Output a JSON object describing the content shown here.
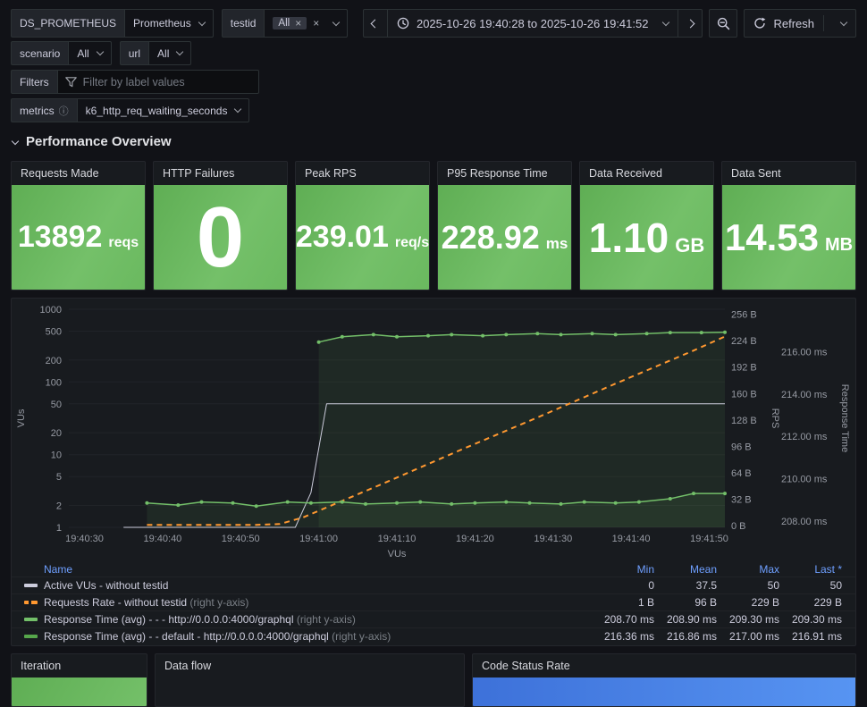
{
  "variables": {
    "ds": {
      "label": "DS_PROMETHEUS",
      "value": "Prometheus"
    },
    "testid": {
      "label": "testid",
      "value": "All"
    },
    "scenario": {
      "label": "scenario",
      "value": "All"
    },
    "url": {
      "label": "url",
      "value": "All"
    },
    "filters": {
      "label": "Filters",
      "placeholder": "Filter by label values"
    },
    "metrics": {
      "label": "metrics",
      "value": "k6_http_req_waiting_seconds"
    }
  },
  "icon_glyphs": {
    "close": "×",
    "info": "ⓘ"
  },
  "timepicker": {
    "range_text": "2025-10-26 19:40:28 to 2025-10-26 19:41:52",
    "refresh_label": "Refresh"
  },
  "section": {
    "title": "Performance Overview"
  },
  "stats": [
    {
      "title": "Requests Made",
      "value": "13892",
      "unit": "reqs"
    },
    {
      "title": "HTTP Failures",
      "value": "0",
      "unit": ""
    },
    {
      "title": "Peak RPS",
      "value": "239.01",
      "unit": "req/s"
    },
    {
      "title": "P95 Response Time",
      "value": "228.92",
      "unit": "ms"
    },
    {
      "title": "Data Received",
      "value": "1.10",
      "unit": "GB"
    },
    {
      "title": "Data Sent",
      "value": "14.53",
      "unit": "MB"
    }
  ],
  "colors": {
    "background": "#111217",
    "panel": "#181b1f",
    "stat_green_from": "#5fae54",
    "stat_green_to": "#74c069",
    "blue_from": "#3d71d9",
    "blue_to": "#5794f2",
    "orange": "#ff9830",
    "green_series": "#73bf69",
    "gray_series": "#ccccdc",
    "legend_header_blue": "#6e9fff"
  },
  "chart_data": {
    "type": "line",
    "x_tick_labels": [
      "19:40:30",
      "19:40:40",
      "19:40:50",
      "19:41:00",
      "19:41:10",
      "19:41:20",
      "19:41:30",
      "19:41:40",
      "19:41:50"
    ],
    "x_tick_seconds": [
      2,
      12,
      22,
      32,
      42,
      52,
      62,
      72,
      82
    ],
    "x_range_seconds": [
      0,
      84
    ],
    "xlabel": "VUs",
    "axes": {
      "vus": {
        "label": "VUs",
        "side": "left",
        "scale": "log",
        "min": 1,
        "max": 1000,
        "tick_values": [
          1,
          2,
          5,
          10,
          20,
          50,
          100,
          200,
          500,
          1000
        ],
        "tick_labels": [
          "1",
          "2",
          "5",
          "10",
          "20",
          "50",
          "100",
          "200",
          "500",
          "1000"
        ]
      },
      "rps": {
        "label": "RPS",
        "side": "right",
        "scale": "linear",
        "min": -2,
        "max": 262,
        "tick_values": [
          0,
          32,
          64,
          96,
          128,
          160,
          192,
          224,
          256
        ],
        "tick_labels": [
          "0 B",
          "32 B",
          "64 B",
          "96 B",
          "128 B",
          "160 B",
          "192 B",
          "224 B",
          "256 B"
        ]
      },
      "rt": {
        "label": "Response Time",
        "side": "right",
        "scale": "linear",
        "min": 207.7,
        "max": 218.0,
        "tick_values": [
          208,
          210,
          212,
          214,
          216
        ],
        "tick_labels": [
          "208.00 ms",
          "210.00 ms",
          "212.00 ms",
          "214.00 ms",
          "216.00 ms"
        ]
      }
    },
    "series": [
      {
        "name": "Active VUs - without testid",
        "axis": "vus",
        "color": "#ccccdc",
        "width": 1,
        "dash": "",
        "points_marker": false,
        "fill": false,
        "data": [
          [
            7,
            1
          ],
          [
            29,
            1
          ],
          [
            31,
            3
          ],
          [
            33,
            50
          ],
          [
            84,
            50
          ]
        ]
      },
      {
        "name": "Requests Rate - without testid",
        "axis": "rps",
        "color": "#ff9830",
        "width": 2,
        "dash": "6,5",
        "points_marker": false,
        "fill": false,
        "data": [
          [
            10,
            1
          ],
          [
            24,
            1
          ],
          [
            27,
            2
          ],
          [
            30,
            10
          ],
          [
            40,
            50
          ],
          [
            50,
            91
          ],
          [
            60,
            131
          ],
          [
            70,
            172
          ],
          [
            80,
            212
          ],
          [
            84,
            229
          ]
        ]
      },
      {
        "name": "Response Time (avg) - - - http://0.0.0.0:4000/graphql",
        "axis": "rt",
        "color": "#73bf69",
        "width": 1.5,
        "dash": "",
        "points_marker": true,
        "fill": true,
        "data": [
          [
            10,
            208.85
          ],
          [
            14,
            208.75
          ],
          [
            17,
            208.9
          ],
          [
            21,
            208.85
          ],
          [
            24,
            208.7
          ],
          [
            28,
            208.9
          ],
          [
            31,
            208.85
          ],
          [
            35,
            208.9
          ],
          [
            38,
            208.8
          ],
          [
            42,
            208.85
          ],
          [
            45,
            208.9
          ],
          [
            49,
            208.8
          ],
          [
            52,
            208.85
          ],
          [
            56,
            208.9
          ],
          [
            59,
            208.85
          ],
          [
            63,
            208.8
          ],
          [
            66,
            208.9
          ],
          [
            70,
            208.85
          ],
          [
            73,
            208.9
          ],
          [
            77,
            209.05
          ],
          [
            80,
            209.3
          ],
          [
            84,
            209.3
          ]
        ]
      },
      {
        "name": "Response Time (avg) - - default - http://0.0.0.0:4000/graphql",
        "axis": "rt",
        "color": "#73bf69",
        "width": 1.5,
        "dash": "",
        "points_marker": true,
        "fill": true,
        "data": [
          [
            32,
            216.45
          ],
          [
            35,
            216.7
          ],
          [
            39,
            216.8
          ],
          [
            42,
            216.7
          ],
          [
            46,
            216.75
          ],
          [
            49,
            216.8
          ],
          [
            53,
            216.75
          ],
          [
            56,
            216.8
          ],
          [
            60,
            216.85
          ],
          [
            63,
            216.8
          ],
          [
            67,
            216.85
          ],
          [
            70,
            216.8
          ],
          [
            74,
            216.85
          ],
          [
            77,
            216.9
          ],
          [
            81,
            216.9
          ],
          [
            84,
            216.91
          ]
        ]
      }
    ],
    "legend": {
      "name_header": "Name",
      "columns": [
        "Min",
        "Mean",
        "Max",
        "Last *"
      ],
      "rows": [
        {
          "name": "Active VUs - without testid",
          "suffix": "",
          "swatch": "#ccccdc",
          "dash": false,
          "values": [
            "0",
            "37.5",
            "50",
            "50"
          ]
        },
        {
          "name": "Requests Rate - without testid",
          "suffix": " (right y-axis)",
          "swatch": "#ff9830",
          "dash": true,
          "values": [
            "1 B",
            "96 B",
            "229 B",
            "229 B"
          ]
        },
        {
          "name": "Response Time (avg) - - - http://0.0.0.0:4000/graphql",
          "suffix": " (right y-axis)",
          "swatch": "#73bf69",
          "dash": false,
          "values": [
            "208.70 ms",
            "208.90 ms",
            "209.30 ms",
            "209.30 ms"
          ]
        },
        {
          "name": "Response Time (avg) - - default - http://0.0.0.0:4000/graphql",
          "suffix": " (right y-axis)",
          "swatch": "#56a64b",
          "dash": false,
          "values": [
            "216.36 ms",
            "216.86 ms",
            "217.00 ms",
            "216.91 ms"
          ]
        }
      ]
    }
  },
  "bottom_panels": [
    {
      "title": "Iteration"
    },
    {
      "title": "Data flow"
    },
    {
      "title": "Code Status Rate"
    }
  ]
}
